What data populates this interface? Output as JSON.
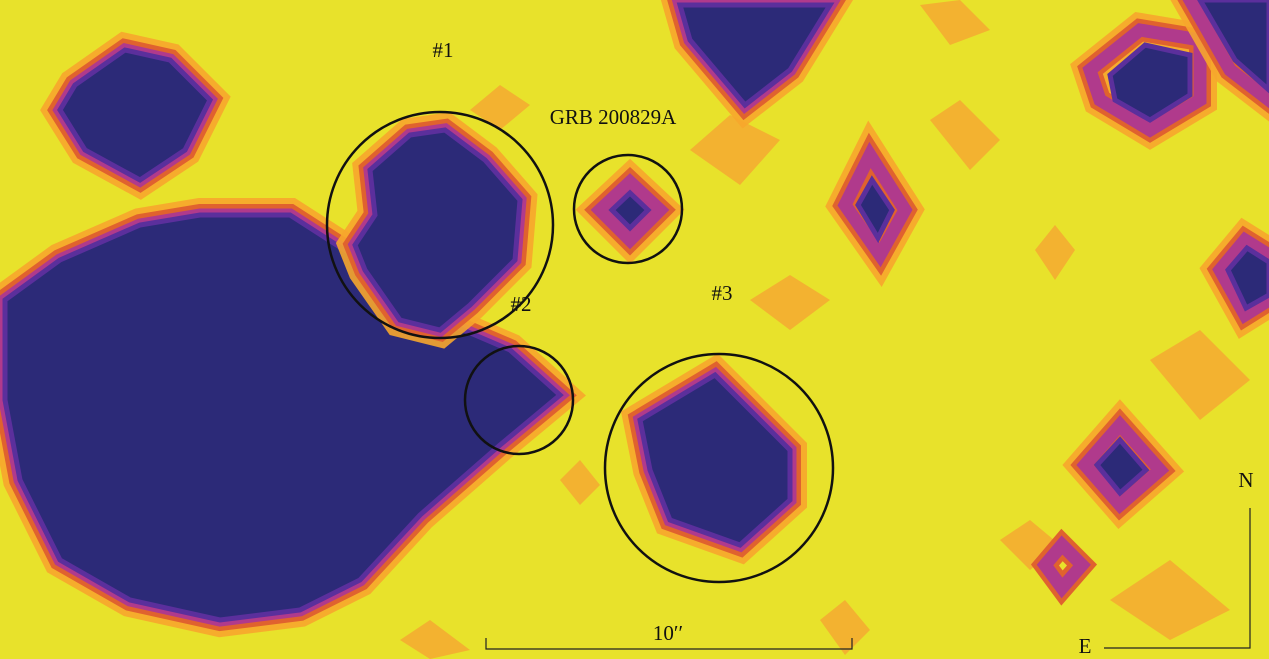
{
  "title": "GRB 200829A",
  "regions": {
    "r1": "#1",
    "r2": "#2",
    "r3": "#3"
  },
  "scale_bar": "10′′",
  "compass": {
    "north": "N",
    "east": "E"
  }
}
